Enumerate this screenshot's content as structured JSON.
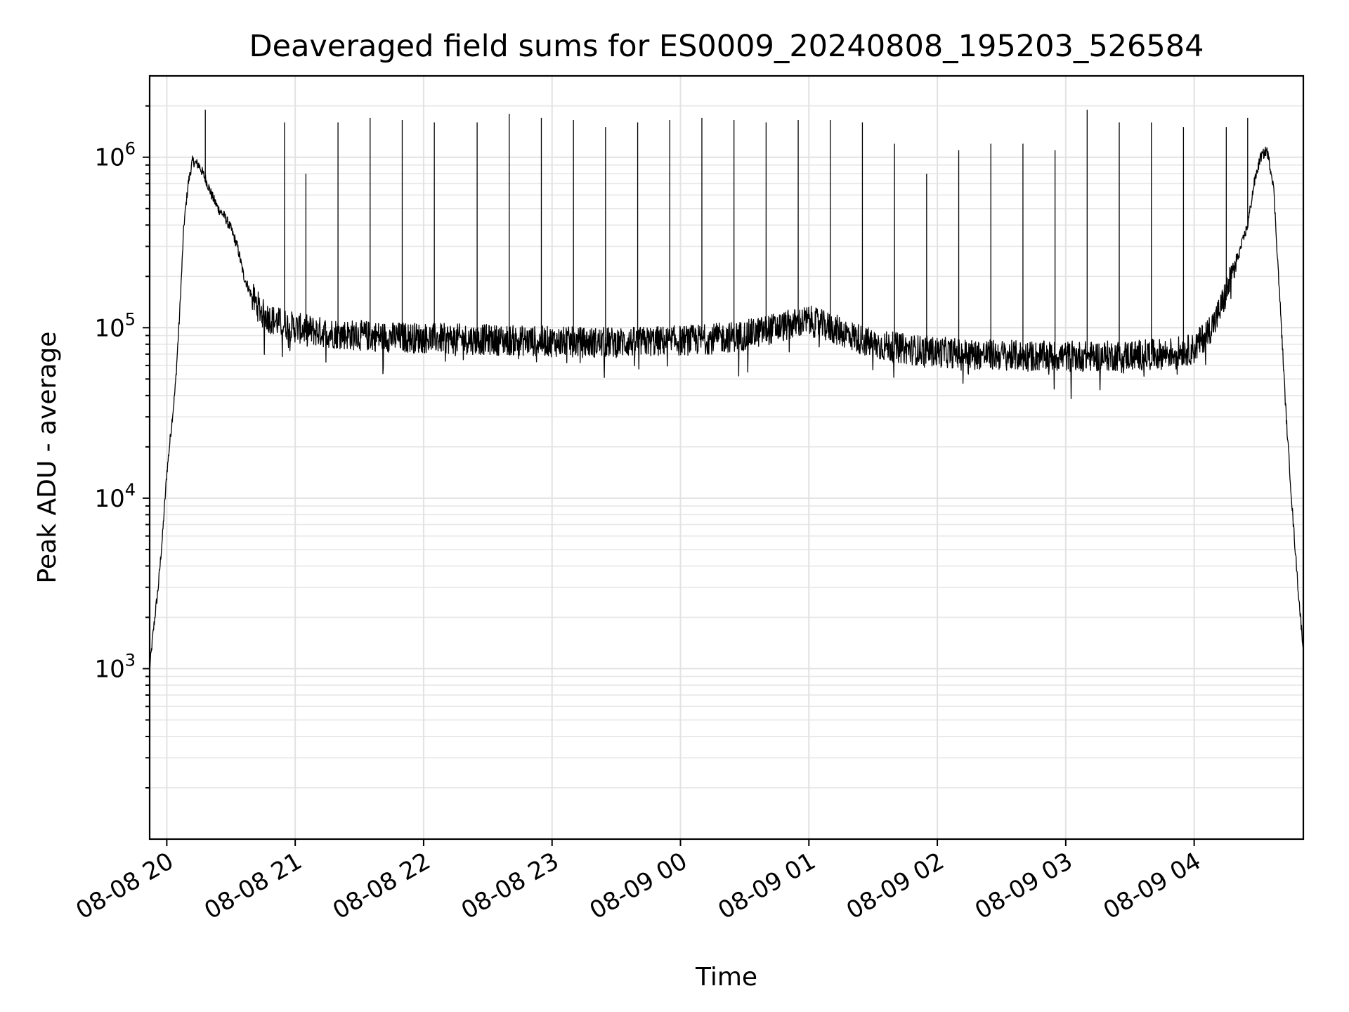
{
  "chart_data": {
    "type": "line",
    "title": "Deaveraged field sums for ES0009_20240808_195203_526584",
    "xlabel": "Time",
    "ylabel": "Peak ADU - average",
    "yscale": "log",
    "ylim": [
      100,
      3000000
    ],
    "xlim": [
      "2024-08-08 19:52",
      "2024-08-09 04:51"
    ],
    "grid": "on (major and minor)",
    "x_ticks": [
      {
        "label": "08-08 20",
        "value": "2024-08-08 20:00"
      },
      {
        "label": "08-08 21",
        "value": "2024-08-08 21:00"
      },
      {
        "label": "08-08 22",
        "value": "2024-08-08 22:00"
      },
      {
        "label": "08-08 23",
        "value": "2024-08-08 23:00"
      },
      {
        "label": "08-09 00",
        "value": "2024-08-09 00:00"
      },
      {
        "label": "08-09 01",
        "value": "2024-08-09 01:00"
      },
      {
        "label": "08-09 02",
        "value": "2024-08-09 02:00"
      },
      {
        "label": "08-09 03",
        "value": "2024-08-09 03:00"
      },
      {
        "label": "08-09 04",
        "value": "2024-08-09 04:00"
      }
    ],
    "y_ticks": [
      {
        "base": "10",
        "exp": "3",
        "value": 1000
      },
      {
        "base": "10",
        "exp": "4",
        "value": 10000
      },
      {
        "base": "10",
        "exp": "5",
        "value": 100000
      },
      {
        "base": "10",
        "exp": "6",
        "value": 1000000
      }
    ],
    "series": [
      {
        "color": "#000000",
        "x": [
          "2024-08-08 19:52",
          "2024-08-08 19:54",
          "2024-08-08 19:56",
          "2024-08-08 19:58",
          "2024-08-08 20:00",
          "2024-08-08 20:02",
          "2024-08-08 20:04",
          "2024-08-08 20:06",
          "2024-08-08 20:08",
          "2024-08-08 20:10",
          "2024-08-08 20:12",
          "2024-08-08 20:15",
          "2024-08-08 20:18",
          "2024-08-08 20:21",
          "2024-08-08 20:24",
          "2024-08-08 20:27",
          "2024-08-08 20:30",
          "2024-08-08 20:33",
          "2024-08-08 20:36",
          "2024-08-08 20:40",
          "2024-08-08 20:45",
          "2024-08-08 20:50",
          "2024-08-08 20:55",
          "2024-08-08 21:00",
          "2024-08-08 21:10",
          "2024-08-08 21:20",
          "2024-08-08 21:30",
          "2024-08-08 21:45",
          "2024-08-08 22:00",
          "2024-08-08 22:15",
          "2024-08-08 22:30",
          "2024-08-08 22:45",
          "2024-08-08 23:00",
          "2024-08-08 23:15",
          "2024-08-08 23:30",
          "2024-08-08 23:45",
          "2024-08-09 00:00",
          "2024-08-09 00:15",
          "2024-08-09 00:30",
          "2024-08-09 00:45",
          "2024-08-09 01:00",
          "2024-08-09 01:15",
          "2024-08-09 01:30",
          "2024-08-09 01:45",
          "2024-08-09 02:00",
          "2024-08-09 02:15",
          "2024-08-09 02:30",
          "2024-08-09 02:45",
          "2024-08-09 03:00",
          "2024-08-09 03:15",
          "2024-08-09 03:30",
          "2024-08-09 03:45",
          "2024-08-09 04:00",
          "2024-08-09 04:05",
          "2024-08-09 04:10",
          "2024-08-09 04:15",
          "2024-08-09 04:20",
          "2024-08-09 04:25",
          "2024-08-09 04:28",
          "2024-08-09 04:31",
          "2024-08-09 04:34",
          "2024-08-09 04:37",
          "2024-08-09 04:40",
          "2024-08-09 04:43",
          "2024-08-09 04:46",
          "2024-08-09 04:49",
          "2024-08-09 04:51"
        ],
        "values": [
          1000,
          1800,
          3000,
          6000,
          14000,
          25000,
          45000,
          120000,
          400000,
          700000,
          950000,
          900000,
          750000,
          600000,
          500000,
          450000,
          380000,
          300000,
          200000,
          150000,
          120000,
          110000,
          105000,
          100000,
          95000,
          92000,
          90000,
          88000,
          87000,
          86000,
          85000,
          84000,
          83000,
          82000,
          82000,
          83000,
          84000,
          86000,
          90000,
          100000,
          110000,
          95000,
          80000,
          75000,
          72000,
          70000,
          69000,
          68000,
          68000,
          68000,
          69000,
          70000,
          75000,
          90000,
          110000,
          160000,
          250000,
          400000,
          700000,
          1000000,
          1100000,
          700000,
          150000,
          30000,
          8000,
          2500,
          1300
        ]
      }
    ],
    "spikes": [
      {
        "x": "2024-08-08 20:18",
        "peak": 1900000
      },
      {
        "x": "2024-08-08 20:55",
        "peak": 1600000
      },
      {
        "x": "2024-08-08 21:05",
        "peak": 800000
      },
      {
        "x": "2024-08-08 21:20",
        "peak": 1600000
      },
      {
        "x": "2024-08-08 21:35",
        "peak": 1700000
      },
      {
        "x": "2024-08-08 21:50",
        "peak": 1650000
      },
      {
        "x": "2024-08-08 22:05",
        "peak": 1600000
      },
      {
        "x": "2024-08-08 22:25",
        "peak": 1600000
      },
      {
        "x": "2024-08-08 22:40",
        "peak": 1800000
      },
      {
        "x": "2024-08-08 22:55",
        "peak": 1700000
      },
      {
        "x": "2024-08-08 23:10",
        "peak": 1650000
      },
      {
        "x": "2024-08-08 23:25",
        "peak": 1500000
      },
      {
        "x": "2024-08-08 23:40",
        "peak": 1600000
      },
      {
        "x": "2024-08-08 23:55",
        "peak": 1650000
      },
      {
        "x": "2024-08-09 00:10",
        "peak": 1700000
      },
      {
        "x": "2024-08-09 00:25",
        "peak": 1650000
      },
      {
        "x": "2024-08-09 00:40",
        "peak": 1600000
      },
      {
        "x": "2024-08-09 00:55",
        "peak": 1650000
      },
      {
        "x": "2024-08-09 01:10",
        "peak": 1650000
      },
      {
        "x": "2024-08-09 01:25",
        "peak": 1600000
      },
      {
        "x": "2024-08-09 01:40",
        "peak": 1200000
      },
      {
        "x": "2024-08-09 01:55",
        "peak": 800000
      },
      {
        "x": "2024-08-09 02:10",
        "peak": 1100000
      },
      {
        "x": "2024-08-09 02:25",
        "peak": 1200000
      },
      {
        "x": "2024-08-09 02:40",
        "peak": 1200000
      },
      {
        "x": "2024-08-09 02:55",
        "peak": 1100000
      },
      {
        "x": "2024-08-09 03:10",
        "peak": 1900000
      },
      {
        "x": "2024-08-09 03:25",
        "peak": 1600000
      },
      {
        "x": "2024-08-09 03:40",
        "peak": 1600000
      },
      {
        "x": "2024-08-09 03:55",
        "peak": 1500000
      },
      {
        "x": "2024-08-09 04:15",
        "peak": 1500000
      },
      {
        "x": "2024-08-09 04:25",
        "peak": 1700000
      }
    ]
  }
}
